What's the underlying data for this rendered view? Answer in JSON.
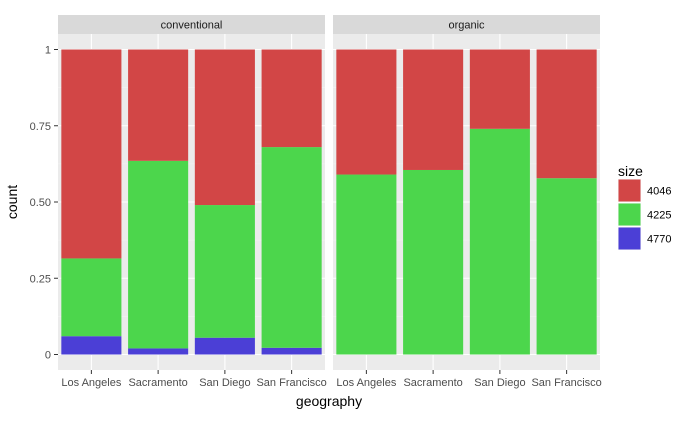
{
  "chart_data": {
    "type": "bar",
    "stacked": true,
    "xlabel": "geography",
    "ylabel": "count",
    "ylim": [
      0,
      1
    ],
    "yticks": [
      0,
      0.25,
      0.5,
      0.75,
      1
    ],
    "ytick_labels": [
      "0",
      "0.25",
      "0.50",
      "0.75",
      "1"
    ],
    "categories": [
      "Los Angeles",
      "Sacramento",
      "San Diego",
      "San Francisco"
    ],
    "facets": [
      {
        "label": "conventional",
        "values": {
          "4770": [
            0.06,
            0.02,
            0.055,
            0.022
          ],
          "4225": [
            0.255,
            0.615,
            0.435,
            0.658
          ],
          "4046": [
            0.685,
            0.365,
            0.51,
            0.32
          ]
        }
      },
      {
        "label": "organic",
        "values": {
          "4770": [
            0.0,
            0.0,
            0.0,
            0.0
          ],
          "4225": [
            0.59,
            0.605,
            0.74,
            0.578
          ],
          "4046": [
            0.41,
            0.395,
            0.26,
            0.422
          ]
        }
      }
    ],
    "legend": {
      "title": "size",
      "position": "right",
      "items": [
        {
          "name": "4046",
          "color": "#d24646"
        },
        {
          "name": "4225",
          "color": "#4cd64c"
        },
        {
          "name": "4770",
          "color": "#4b3fd6"
        }
      ]
    },
    "stack_order": [
      "4770",
      "4225",
      "4046"
    ],
    "grid": true
  }
}
